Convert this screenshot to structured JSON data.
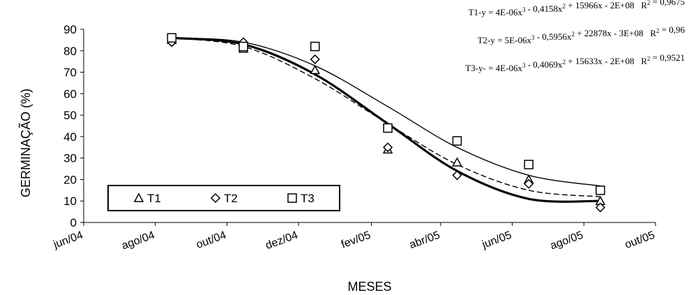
{
  "chart_data": {
    "type": "scatter",
    "xlabel": "MESES",
    "ylabel": "GERMINAÇÃO (%)",
    "ylim": [
      0,
      90
    ],
    "yticks": [
      "0",
      "10",
      "20",
      "30",
      "40",
      "50",
      "60",
      "70",
      "80",
      "90"
    ],
    "x_tick_labels": [
      "jun/04",
      "ago/04",
      "out/04",
      "dez/04",
      "fev/05",
      "abr/05",
      "jun/05",
      "ago/05",
      "out/05"
    ],
    "x_dates": [
      "2004-08-15",
      "2004-10-15",
      "2004-12-15",
      "2005-02-15",
      "2005-04-15",
      "2005-06-15",
      "2005-08-15"
    ],
    "legend_position": "bottom-left",
    "series": [
      {
        "name": "T1",
        "marker": "triangle",
        "line_style": "solid-thick",
        "y": [
          85,
          81,
          71,
          34,
          28,
          20,
          10
        ],
        "fit_y": [
          86,
          83,
          69,
          46,
          24,
          11,
          10
        ]
      },
      {
        "name": "T2",
        "marker": "diamond",
        "line_style": "dashed",
        "y": [
          84,
          84,
          76,
          35,
          22,
          18,
          7
        ],
        "fit_y": [
          86,
          82,
          67,
          46,
          27,
          15,
          12
        ]
      },
      {
        "name": "T3",
        "marker": "square",
        "line_style": "solid-thin",
        "y": [
          86,
          82,
          82,
          44,
          38,
          27,
          15
        ],
        "fit_y": [
          86,
          84,
          73,
          54,
          35,
          22,
          17
        ]
      }
    ],
    "equations": [
      {
        "main": "T1-y = 4E-06x",
        "c3": "3",
        "mid": " - 0,4158x",
        "c2": "2",
        "rest": " + 15966x - 2E+08",
        "r2": "R",
        "r2sup": "2",
        "r2val": " = 0,9675"
      },
      {
        "main": "T2-y = 5E-06x",
        "c3": "3",
        "mid": " - 0,5956x",
        "c2": "2",
        "rest": " + 22878x - 3E+08",
        "r2": "R",
        "r2sup": "2",
        "r2val": " = 0,96"
      },
      {
        "main": "T3-y- = 4E-06x",
        "c3": "3",
        "mid": " - 0,4069x",
        "c2": "2",
        "rest": " + 15633x - 2E+08",
        "r2": "R",
        "r2sup": "2",
        "r2val": " = 0,9521"
      }
    ]
  }
}
